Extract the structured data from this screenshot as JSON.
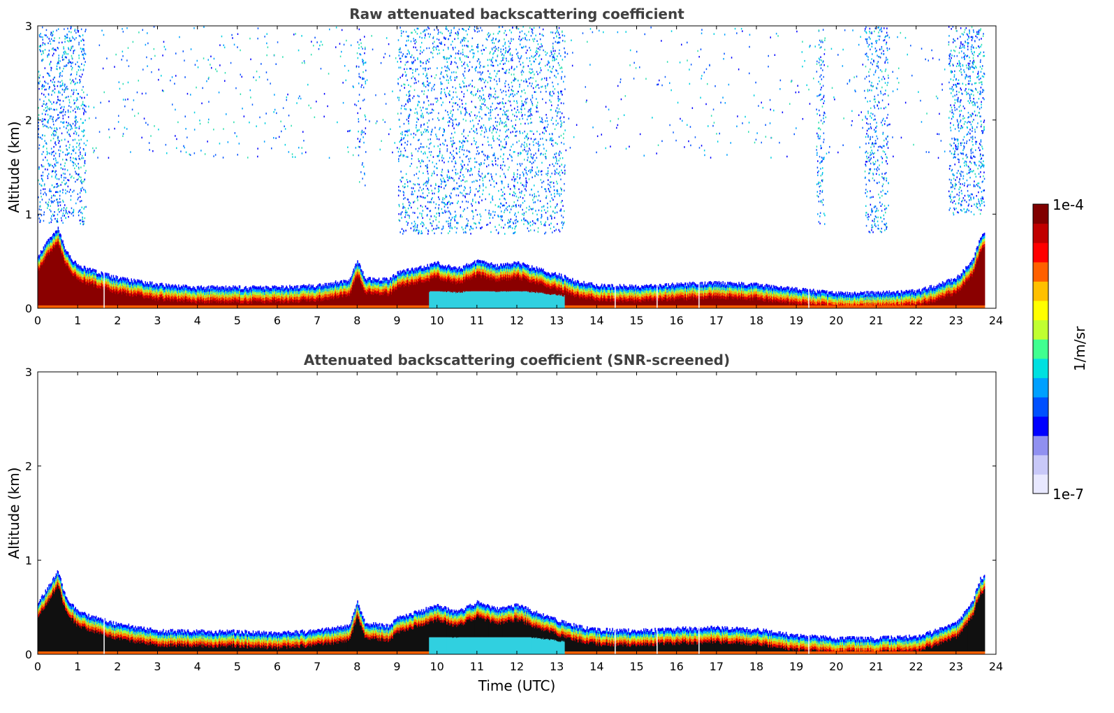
{
  "chart_data": [
    {
      "type": "heatmap",
      "title": "Raw attenuated backscattering coefficient",
      "xlabel": "",
      "ylabel": "Altitude (km)",
      "xlim": [
        0,
        24
      ],
      "ylim": [
        0,
        3
      ],
      "x_ticks": [
        "0",
        "1",
        "2",
        "3",
        "4",
        "5",
        "6",
        "7",
        "8",
        "9",
        "10",
        "11",
        "12",
        "13",
        "14",
        "15",
        "16",
        "17",
        "18",
        "19",
        "20",
        "21",
        "22",
        "23",
        "24"
      ],
      "y_ticks": [
        "0",
        "1",
        "2",
        "3"
      ],
      "layer_top_km": [
        [
          0,
          0.55
        ],
        [
          0.3,
          0.75
        ],
        [
          0.5,
          0.85
        ],
        [
          0.7,
          0.6
        ],
        [
          1,
          0.45
        ],
        [
          1.5,
          0.38
        ],
        [
          2,
          0.32
        ],
        [
          3,
          0.25
        ],
        [
          4,
          0.22
        ],
        [
          5,
          0.22
        ],
        [
          6,
          0.22
        ],
        [
          7,
          0.24
        ],
        [
          7.8,
          0.3
        ],
        [
          8,
          0.5
        ],
        [
          8.2,
          0.32
        ],
        [
          8.8,
          0.3
        ],
        [
          9,
          0.38
        ],
        [
          9.5,
          0.42
        ],
        [
          10,
          0.48
        ],
        [
          10.5,
          0.42
        ],
        [
          11,
          0.5
        ],
        [
          11.5,
          0.45
        ],
        [
          12,
          0.48
        ],
        [
          12.5,
          0.42
        ],
        [
          13,
          0.36
        ],
        [
          13.5,
          0.28
        ],
        [
          14,
          0.24
        ],
        [
          15,
          0.23
        ],
        [
          16,
          0.25
        ],
        [
          17,
          0.27
        ],
        [
          18,
          0.25
        ],
        [
          19,
          0.2
        ],
        [
          20,
          0.16
        ],
        [
          21,
          0.16
        ],
        [
          22,
          0.18
        ],
        [
          22.5,
          0.24
        ],
        [
          23,
          0.32
        ],
        [
          23.4,
          0.5
        ],
        [
          23.6,
          0.75
        ],
        [
          23.7,
          0.8
        ]
      ],
      "high_scatter_regions_hours": [
        [
          0,
          1.2
        ],
        [
          8,
          8.2
        ],
        [
          9,
          13.2
        ],
        [
          19.5,
          19.7
        ],
        [
          20.7,
          21.3
        ],
        [
          22.8,
          23.7
        ]
      ],
      "notes": "Dense boundary layer near surface; sparse noise above"
    },
    {
      "type": "heatmap",
      "title": "Attenuated backscattering coefficient (SNR-screened)",
      "xlabel": "Time (UTC)",
      "ylabel": "Altitude (km)",
      "xlim": [
        0,
        24
      ],
      "ylim": [
        0,
        3
      ],
      "x_ticks": [
        "0",
        "1",
        "2",
        "3",
        "4",
        "5",
        "6",
        "7",
        "8",
        "9",
        "10",
        "11",
        "12",
        "13",
        "14",
        "15",
        "16",
        "17",
        "18",
        "19",
        "20",
        "21",
        "22",
        "23",
        "24"
      ],
      "y_ticks": [
        "0",
        "1",
        "2",
        "3"
      ],
      "layer_top_km": [
        [
          0,
          0.55
        ],
        [
          0.3,
          0.75
        ],
        [
          0.5,
          0.88
        ],
        [
          0.7,
          0.6
        ],
        [
          1,
          0.45
        ],
        [
          1.5,
          0.38
        ],
        [
          2,
          0.32
        ],
        [
          3,
          0.25
        ],
        [
          4,
          0.24
        ],
        [
          5,
          0.24
        ],
        [
          6,
          0.22
        ],
        [
          7,
          0.25
        ],
        [
          7.8,
          0.3
        ],
        [
          8,
          0.55
        ],
        [
          8.2,
          0.33
        ],
        [
          8.8,
          0.3
        ],
        [
          9,
          0.38
        ],
        [
          9.5,
          0.45
        ],
        [
          10,
          0.52
        ],
        [
          10.5,
          0.45
        ],
        [
          11,
          0.55
        ],
        [
          11.5,
          0.48
        ],
        [
          12,
          0.52
        ],
        [
          12.5,
          0.44
        ],
        [
          13,
          0.36
        ],
        [
          13.5,
          0.3
        ],
        [
          14,
          0.26
        ],
        [
          15,
          0.25
        ],
        [
          16,
          0.27
        ],
        [
          17,
          0.28
        ],
        [
          18,
          0.26
        ],
        [
          19,
          0.2
        ],
        [
          20,
          0.17
        ],
        [
          21,
          0.17
        ],
        [
          22,
          0.19
        ],
        [
          22.5,
          0.25
        ],
        [
          23,
          0.33
        ],
        [
          23.4,
          0.55
        ],
        [
          23.6,
          0.8
        ],
        [
          23.7,
          0.82
        ]
      ]
    }
  ],
  "colorbar": {
    "label": "1/m/sr",
    "max_label": "1e-4",
    "min_label": "1e-7",
    "scale": "log",
    "colors": [
      "#e8e8ff",
      "#c8c8f8",
      "#9090f0",
      "#0000ff",
      "#0050ff",
      "#00a0ff",
      "#00e0e0",
      "#40ff90",
      "#c0ff30",
      "#ffff00",
      "#ffc000",
      "#ff6000",
      "#ff0000",
      "#c00000",
      "#800000"
    ]
  }
}
